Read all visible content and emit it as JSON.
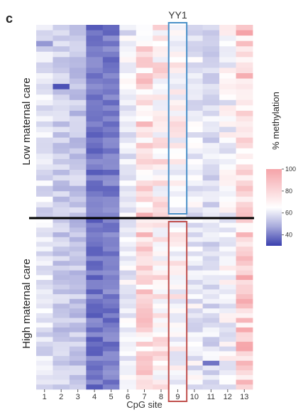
{
  "panel_letter": "c",
  "chart_data": {
    "type": "heatmap",
    "title": "",
    "xlabel": "CpG site",
    "ylabel": "",
    "x_categories": [
      "1",
      "2",
      "3",
      "4",
      "5",
      "6",
      "7",
      "8",
      "9",
      "10",
      "11",
      "12",
      "13"
    ],
    "groups": [
      {
        "name": "Low maternal care",
        "rows": 36
      },
      {
        "name": "High maternal care",
        "rows": 36
      }
    ],
    "highlight": {
      "label": "YY1",
      "site": "9",
      "low_group_box_color": "#4a90c8",
      "high_group_box_color": "#c0504d"
    },
    "site_mean_methylation_pct": [
      76,
      70,
      68,
      45,
      47,
      78,
      90,
      86,
      83,
      78,
      75,
      80,
      92
    ],
    "colorbar": {
      "label": "% methylation",
      "ticks": [
        40,
        60,
        80,
        100
      ],
      "min": 30,
      "max": 100,
      "low_color": "#3a3fae",
      "mid_color": "#ffffff",
      "high_color": "#f5a3a8"
    },
    "notable_cells": [
      {
        "group": "Low maternal care",
        "row": 3,
        "site": "1",
        "value": 55
      },
      {
        "group": "Low maternal care",
        "row": 11,
        "site": "2",
        "value": 35
      },
      {
        "group": "High maternal care",
        "row": 30,
        "site": "11",
        "value": 45
      }
    ]
  }
}
